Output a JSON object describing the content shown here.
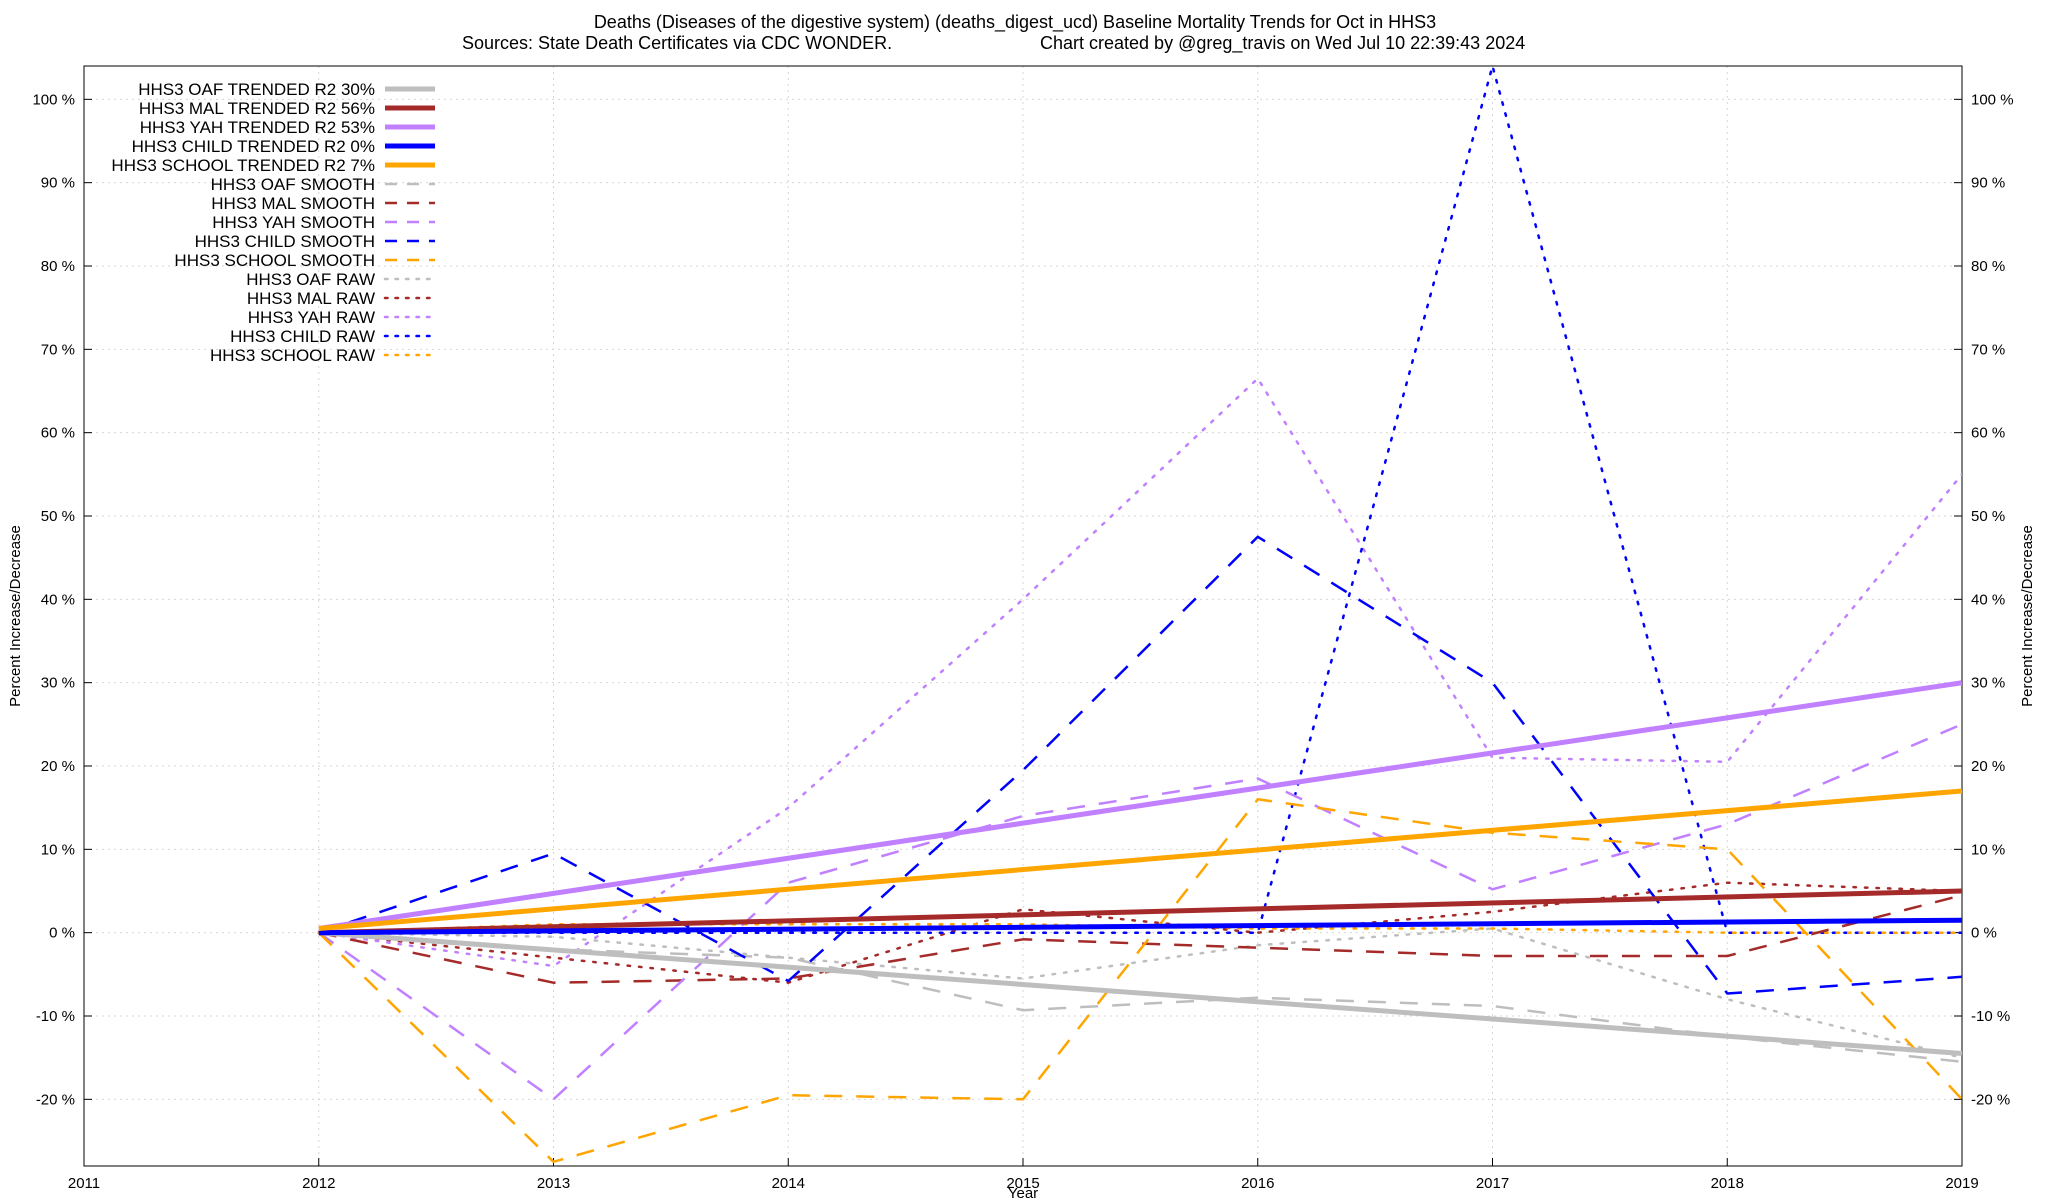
{
  "chart_data": {
    "type": "line",
    "title_line1": "Deaths (Diseases of the digestive system) (deaths_digest_ucd)  Baseline Mortality Trends for Oct in HHS3",
    "title_line2_left": "Sources: State Death Certificates via CDC WONDER.",
    "title_line2_right": "Chart created by @greg_travis on Wed Jul 10 22:39:43 2024",
    "xlabel": "Year",
    "ylabel": "Percent Increase/Decrease",
    "xlim": [
      2011,
      2019
    ],
    "ylim": [
      -28,
      104
    ],
    "x_ticks": [
      2011,
      2012,
      2013,
      2014,
      2015,
      2016,
      2017,
      2018,
      2019
    ],
    "y_ticks": [
      -20,
      -10,
      0,
      10,
      20,
      30,
      40,
      50,
      60,
      70,
      80,
      90,
      100
    ],
    "y_tick_suffix": " %",
    "grid": true,
    "legend_position": "top-left",
    "series": [
      {
        "name": "HHS3 OAF TRENDED R2  30%",
        "color": "#bebebe",
        "style": "solid",
        "width": 5,
        "points": [
          [
            2012,
            0
          ],
          [
            2019,
            -14.5
          ]
        ]
      },
      {
        "name": "HHS3 MAL TRENDED R2  56%",
        "color": "#a52a2a",
        "style": "solid",
        "width": 5,
        "points": [
          [
            2012,
            0
          ],
          [
            2019,
            5
          ]
        ]
      },
      {
        "name": "HHS3 YAH TRENDED R2  53%",
        "color": "#c080ff",
        "style": "solid",
        "width": 5,
        "points": [
          [
            2012,
            0.5
          ],
          [
            2019,
            30
          ]
        ]
      },
      {
        "name": "HHS3 CHILD TRENDED R2    0%",
        "color": "#0000ff",
        "style": "solid",
        "width": 5,
        "points": [
          [
            2012,
            0
          ],
          [
            2019,
            1.5
          ]
        ]
      },
      {
        "name": "HHS3 SCHOOL TRENDED R2   7%",
        "color": "#ffa500",
        "style": "solid",
        "width": 5,
        "points": [
          [
            2012,
            0.5
          ],
          [
            2019,
            17
          ]
        ]
      },
      {
        "name": "HHS3 OAF SMOOTH",
        "color": "#bebebe",
        "style": "dashed",
        "width": 2.5,
        "points": [
          [
            2012,
            0
          ],
          [
            2013,
            -2
          ],
          [
            2014,
            -3
          ],
          [
            2015,
            -9.3
          ],
          [
            2016,
            -7.8
          ],
          [
            2017,
            -8.8
          ],
          [
            2018,
            -12.5
          ],
          [
            2019,
            -15.5
          ]
        ]
      },
      {
        "name": "HHS3 MAL SMOOTH",
        "color": "#a52a2a",
        "style": "dashed",
        "width": 2.5,
        "points": [
          [
            2012,
            0
          ],
          [
            2013,
            -6
          ],
          [
            2014,
            -5.5
          ],
          [
            2015,
            -0.8
          ],
          [
            2016,
            -1.8
          ],
          [
            2017,
            -2.8
          ],
          [
            2018,
            -2.8
          ],
          [
            2019,
            4.5
          ]
        ]
      },
      {
        "name": "HHS3 YAH SMOOTH",
        "color": "#c080ff",
        "style": "dashed",
        "width": 2.5,
        "points": [
          [
            2012,
            0
          ],
          [
            2013,
            -20
          ],
          [
            2014,
            6
          ],
          [
            2015,
            14
          ],
          [
            2016,
            18.5
          ],
          [
            2017,
            5.2
          ],
          [
            2018,
            13
          ],
          [
            2019,
            25
          ]
        ]
      },
      {
        "name": "HHS3 CHILD SMOOTH",
        "color": "#0000ff",
        "style": "dashed",
        "width": 2.5,
        "points": [
          [
            2012,
            0
          ],
          [
            2013,
            9.5
          ],
          [
            2014,
            -5.8
          ],
          [
            2015,
            19.5
          ],
          [
            2016,
            47.5
          ],
          [
            2017,
            30
          ],
          [
            2018,
            -7.3
          ],
          [
            2019,
            -5.3
          ]
        ]
      },
      {
        "name": "HHS3 SCHOOL SMOOTH",
        "color": "#ffa500",
        "style": "dashed",
        "width": 2.5,
        "points": [
          [
            2012,
            0
          ],
          [
            2013,
            -27.5
          ],
          [
            2014,
            -19.5
          ],
          [
            2015,
            -20
          ],
          [
            2016,
            16
          ],
          [
            2017,
            12
          ],
          [
            2018,
            10
          ],
          [
            2019,
            -20
          ]
        ]
      },
      {
        "name": "HHS3 OAF RAW",
        "color": "#bebebe",
        "style": "dotted",
        "width": 2.5,
        "points": [
          [
            2012,
            0
          ],
          [
            2013,
            -0.5
          ],
          [
            2014,
            -3
          ],
          [
            2015,
            -5.5
          ],
          [
            2016,
            -1.5
          ],
          [
            2017,
            0.5
          ],
          [
            2018,
            -8
          ],
          [
            2019,
            -15
          ]
        ]
      },
      {
        "name": "HHS3 MAL RAW",
        "color": "#a52a2a",
        "style": "dotted",
        "width": 2.5,
        "points": [
          [
            2012,
            0
          ],
          [
            2013,
            -3
          ],
          [
            2014,
            -6
          ],
          [
            2015,
            2.8
          ],
          [
            2016,
            0
          ],
          [
            2017,
            2.5
          ],
          [
            2018,
            6
          ],
          [
            2019,
            5
          ]
        ]
      },
      {
        "name": "HHS3 YAH RAW",
        "color": "#c080ff",
        "style": "dotted",
        "width": 2.5,
        "points": [
          [
            2012,
            0
          ],
          [
            2013,
            -4
          ],
          [
            2014,
            15
          ],
          [
            2015,
            40
          ],
          [
            2016,
            66.5
          ],
          [
            2017,
            21
          ],
          [
            2018,
            20.5
          ],
          [
            2019,
            55
          ]
        ]
      },
      {
        "name": "HHS3 CHILD RAW",
        "color": "#0000ff",
        "style": "dotted",
        "width": 2.5,
        "points": [
          [
            2012,
            0
          ],
          [
            2013,
            0
          ],
          [
            2014,
            0
          ],
          [
            2015,
            0
          ],
          [
            2016,
            0
          ],
          [
            2017,
            104
          ],
          [
            2018,
            0
          ],
          [
            2019,
            0
          ]
        ]
      },
      {
        "name": "HHS3 SCHOOL RAW",
        "color": "#ffa500",
        "style": "dotted",
        "width": 2.5,
        "points": [
          [
            2012,
            0
          ],
          [
            2013,
            1
          ],
          [
            2014,
            1
          ],
          [
            2015,
            1
          ],
          [
            2016,
            0.5
          ],
          [
            2017,
            0.5
          ],
          [
            2018,
            0
          ],
          [
            2019,
            0
          ]
        ]
      }
    ]
  }
}
